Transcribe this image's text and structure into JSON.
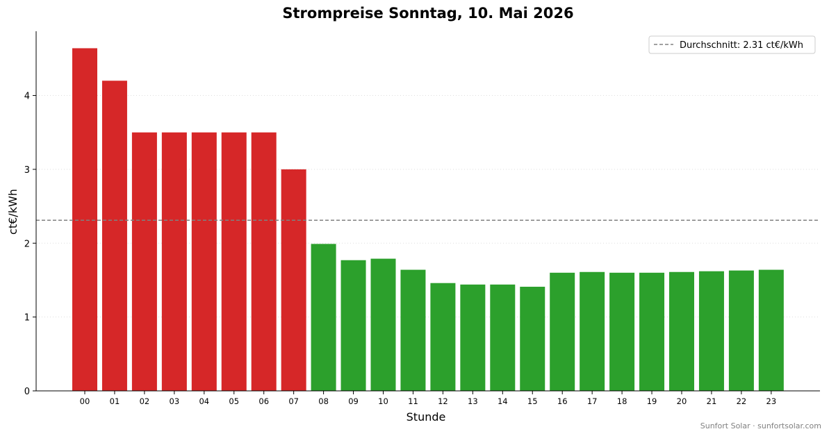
{
  "chart_data": {
    "type": "bar",
    "title": "Strompreise Sonntag, 10. Mai 2026",
    "xlabel": "Stunde",
    "ylabel": "ct€/kWh",
    "ylim": [
      0,
      4.87
    ],
    "yticks": [
      "0",
      "1",
      "2",
      "3",
      "4"
    ],
    "categories": [
      "00",
      "01",
      "02",
      "03",
      "04",
      "05",
      "06",
      "07",
      "08",
      "09",
      "10",
      "11",
      "12",
      "13",
      "14",
      "15",
      "16",
      "17",
      "18",
      "19",
      "20",
      "21",
      "22",
      "23"
    ],
    "values": [
      4.64,
      4.2,
      3.5,
      3.5,
      3.5,
      3.5,
      3.5,
      3.0,
      1.99,
      1.77,
      1.79,
      1.64,
      1.46,
      1.44,
      1.44,
      1.41,
      1.6,
      1.61,
      1.6,
      1.6,
      1.61,
      1.62,
      1.63,
      1.64
    ],
    "average": 2.31,
    "legend": {
      "label": "Durchschnitt: 2.31 ct€/kWh",
      "position": "top-right"
    },
    "grid": "horizontal-dotted",
    "colors": {
      "above_average": "#d62728",
      "below_average": "#2ca02c",
      "average_line": "#808080",
      "grid": "#dddddd"
    }
  },
  "footer": "Sunfort Solar · sunfortsolar.com"
}
